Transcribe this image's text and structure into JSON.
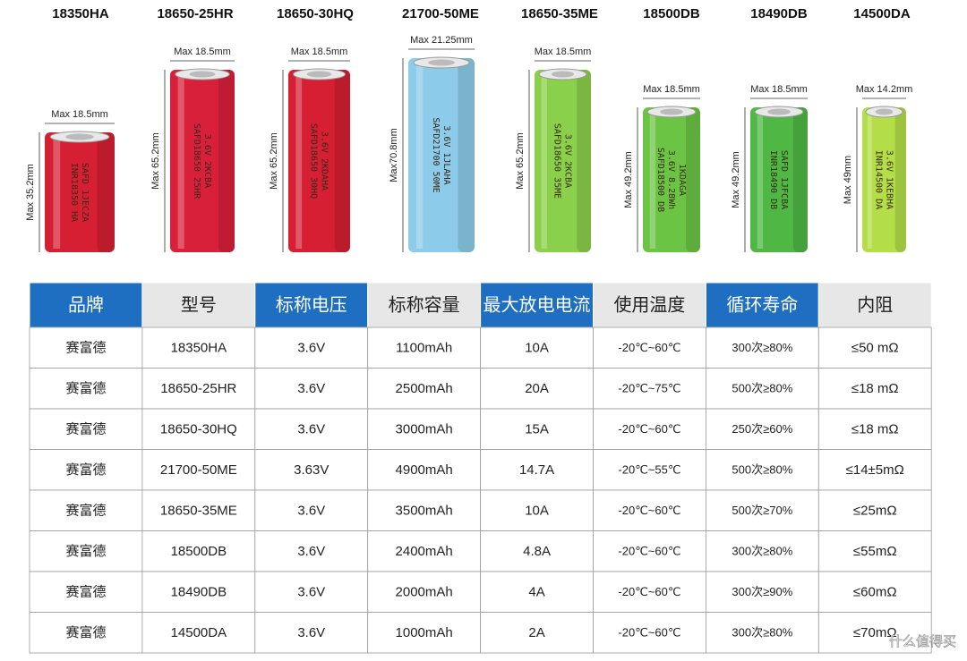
{
  "batteries": [
    {
      "name": "18350HA",
      "width_label": "Max 18.5mm",
      "height_label": "Max 35.2mm",
      "print": [
        "INR18350 HA",
        "SAFD 1JECZA"
      ]
    },
    {
      "name": "18650-25HR",
      "width_label": "Max 18.5mm",
      "height_label": "Max 65.2mm",
      "print": [
        "SAFD18650 25HR",
        "3.6V 2KCBA"
      ]
    },
    {
      "name": "18650-30HQ",
      "width_label": "Max 18.5mm",
      "height_label": "Max 65.2mm",
      "print": [
        "SAFD18650 30HQ",
        "3.6V 2KDAHA"
      ]
    },
    {
      "name": "21700-50ME",
      "width_label": "Max 21.25mm",
      "height_label": "Max70.8mm",
      "print": [
        "SAFD21700 50ME",
        "3.6V 1JLAHA"
      ]
    },
    {
      "name": "18650-35ME",
      "width_label": "Max 18.5mm",
      "height_label": "Max 65.2mm",
      "print": [
        "SAFD18650 35ME",
        "3.6V 2KCBA"
      ]
    },
    {
      "name": "18500DB",
      "width_label": "Max 18.5mm",
      "height_label": "Max 49.2mm",
      "print": [
        "SAFD18500 DB",
        "3.6V 8.28Wh",
        "1KDAGA"
      ]
    },
    {
      "name": "18490DB",
      "width_label": "Max 18.5mm",
      "height_label": "Max 49.2mm",
      "print": [
        "INR18490 DB",
        "SAFD 1JFCBA"
      ]
    },
    {
      "name": "14500DA",
      "width_label": "Max 14.2mm",
      "height_label": "Max 49mm",
      "print": [
        "INR14500 DA",
        "3.6V 1KEBHA"
      ]
    }
  ],
  "table": {
    "headers": [
      "品牌",
      "型号",
      "标称电压",
      "标称容量",
      "最大放电电流",
      "使用温度",
      "循环寿命",
      "内阻"
    ],
    "rows": [
      [
        "赛富德",
        "18350HA",
        "3.6V",
        "1100mAh",
        "10A",
        "-20℃~60℃",
        "300次≥80%",
        "≤50 mΩ"
      ],
      [
        "赛富德",
        "18650-25HR",
        "3.6V",
        "2500mAh",
        "20A",
        "-20℃~75℃",
        "500次≥80%",
        "≤18 mΩ"
      ],
      [
        "赛富德",
        "18650-30HQ",
        "3.6V",
        "3000mAh",
        "15A",
        "-20℃~60℃",
        "250次≥60%",
        "≤18 mΩ"
      ],
      [
        "赛富德",
        "21700-50ME",
        "3.63V",
        "4900mAh",
        "14.7A",
        "-20℃~55℃",
        "500次≥80%",
        "≤14±5mΩ"
      ],
      [
        "赛富德",
        "18650-35ME",
        "3.6V",
        "3500mAh",
        "10A",
        "-20℃~60℃",
        "500次≥70%",
        "≤25mΩ"
      ],
      [
        "赛富德",
        "18500DB",
        "3.6V",
        "2400mAh",
        "4.8A",
        "-20℃~60℃",
        "300次≥80%",
        "≤55mΩ"
      ],
      [
        "赛富德",
        "18490DB",
        "3.6V",
        "2000mAh",
        "4A",
        "-20℃~60℃",
        "300次≥90%",
        "≤60mΩ"
      ],
      [
        "赛富德",
        "14500DA",
        "3.6V",
        "1000mAh",
        "2A",
        "-20℃~60℃",
        "300次≥80%",
        "≤70mΩ"
      ]
    ]
  },
  "watermark": "什么值得买"
}
